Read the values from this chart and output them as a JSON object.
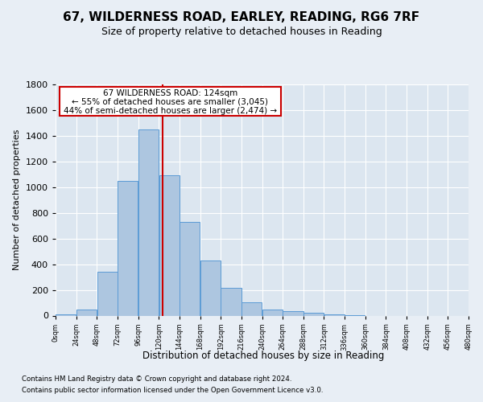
{
  "title": "67, WILDERNESS ROAD, EARLEY, READING, RG6 7RF",
  "subtitle": "Size of property relative to detached houses in Reading",
  "xlabel": "Distribution of detached houses by size in Reading",
  "ylabel": "Number of detached properties",
  "property_size": 124,
  "annotation_line1": "67 WILDERNESS ROAD: 124sqm",
  "annotation_line2": "← 55% of detached houses are smaller (3,045)",
  "annotation_line3": "44% of semi-detached houses are larger (2,474) →",
  "footer_line1": "Contains HM Land Registry data © Crown copyright and database right 2024.",
  "footer_line2": "Contains public sector information licensed under the Open Government Licence v3.0.",
  "bin_edges": [
    0,
    24,
    48,
    72,
    96,
    120,
    144,
    168,
    192,
    216,
    240,
    264,
    288,
    312,
    336,
    360,
    384,
    408,
    432,
    456,
    480
  ],
  "bar_heights": [
    10,
    50,
    340,
    1050,
    1450,
    1090,
    730,
    430,
    215,
    105,
    50,
    35,
    20,
    10,
    5,
    0,
    0,
    0,
    0,
    0
  ],
  "bar_color": "#adc6e0",
  "bar_edge_color": "#5b9bd5",
  "vline_color": "#cc0000",
  "annotation_box_edge_color": "#cc0000",
  "bg_color": "#e8eef5",
  "plot_bg_color": "#dce6f0",
  "grid_color": "#ffffff",
  "ylim_max": 1800,
  "yticks": [
    0,
    200,
    400,
    600,
    800,
    1000,
    1200,
    1400,
    1600,
    1800
  ]
}
